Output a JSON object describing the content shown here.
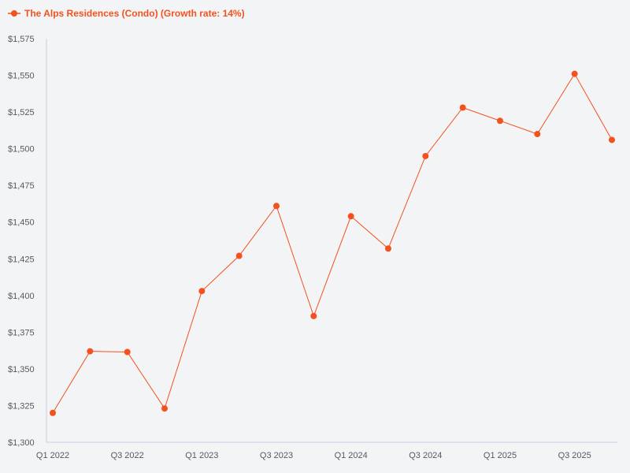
{
  "colors": {
    "series": "#f4511e",
    "axis": "#c8cbe0",
    "text": "#555a60",
    "background": "#f3f4f6"
  },
  "chart_data": {
    "type": "line",
    "legend_position": "top-left",
    "grid": false,
    "x": [
      "Q1 2022",
      "Q2 2022",
      "Q3 2022",
      "Q4 2022",
      "Q1 2023",
      "Q2 2023",
      "Q3 2023",
      "Q4 2023",
      "Q1 2024",
      "Q2 2024",
      "Q3 2024",
      "Q4 2024",
      "Q1 2025",
      "Q2 2025",
      "Q3 2025",
      "Q4 2025"
    ],
    "x_tick_labels": [
      "Q1 2022",
      "Q3 2022",
      "Q1 2023",
      "Q3 2023",
      "Q1 2024",
      "Q3 2024",
      "Q1 2025",
      "Q3 2025"
    ],
    "y_ticks": [
      1300,
      1325,
      1350,
      1375,
      1400,
      1425,
      1450,
      1475,
      1500,
      1525,
      1550,
      1575
    ],
    "y_tick_labels": [
      "$1,300",
      "$1,325",
      "$1,350",
      "$1,375",
      "$1,400",
      "$1,425",
      "$1,450",
      "$1,475",
      "$1,500",
      "$1,525",
      "$1,550",
      "$1,575"
    ],
    "ylim": [
      1300,
      1575
    ],
    "series": [
      {
        "name": "The Alps Residences (Condo) (Growth rate: 14%)",
        "values": [
          1320,
          1362,
          1361.5,
          1323,
          1403,
          1427,
          1461,
          1386,
          1454,
          1432,
          1495,
          1528,
          1519,
          1510,
          1551,
          1506
        ]
      }
    ]
  }
}
